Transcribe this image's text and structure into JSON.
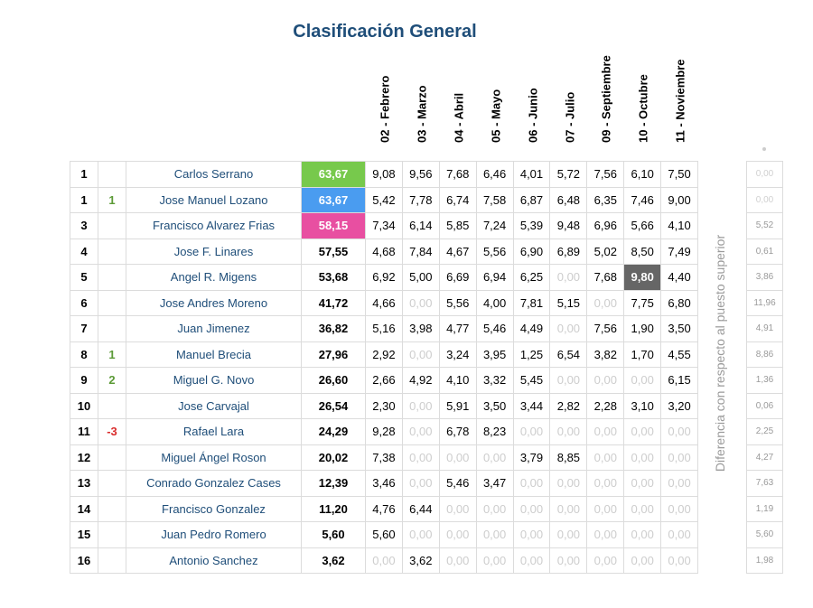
{
  "title": "Clasificación General",
  "columns": [
    "02 - Febrero",
    "03 - Marzo",
    "04 - Abril",
    "05 - Mayo",
    "06 - Junio",
    "07 - Julio",
    "09 - Septiembre",
    "10 - Octubre",
    "11 - Noviembre"
  ],
  "diff_label": "Diferencia con respecto al puesto superior",
  "diff_header_symbol": "•",
  "highlight_colors": {
    "first": "#77c94c",
    "second": "#4a9cf0",
    "third": "#e84fa1",
    "best_round": "#666666",
    "name": "#1f4e79"
  },
  "rows": [
    {
      "pos": "1",
      "change": "",
      "name": "Carlos Serrano",
      "total": "63,67",
      "scores": [
        "9,08",
        "9,56",
        "7,68",
        "6,46",
        "4,01",
        "5,72",
        "7,56",
        "6,10",
        "7,50"
      ],
      "diff": "0,00"
    },
    {
      "pos": "1",
      "change": "1",
      "name": "Jose Manuel Lozano",
      "total": "63,67",
      "scores": [
        "5,42",
        "7,78",
        "6,74",
        "7,58",
        "6,87",
        "6,48",
        "6,35",
        "7,46",
        "9,00"
      ],
      "diff": "0,00"
    },
    {
      "pos": "3",
      "change": "",
      "name": "Francisco Alvarez Frias",
      "total": "58,15",
      "scores": [
        "7,34",
        "6,14",
        "5,85",
        "7,24",
        "5,39",
        "9,48",
        "6,96",
        "5,66",
        "4,10"
      ],
      "diff": "5,52"
    },
    {
      "pos": "4",
      "change": "",
      "name": "Jose F. Linares",
      "total": "57,55",
      "scores": [
        "4,68",
        "7,84",
        "4,67",
        "5,56",
        "6,90",
        "6,89",
        "5,02",
        "8,50",
        "7,49"
      ],
      "diff": "0,61"
    },
    {
      "pos": "5",
      "change": "",
      "name": "Angel R. Migens",
      "total": "53,68",
      "scores": [
        "6,92",
        "5,00",
        "6,69",
        "6,94",
        "6,25",
        "0,00",
        "7,68",
        "9,80",
        "4,40"
      ],
      "diff": "3,86"
    },
    {
      "pos": "6",
      "change": "",
      "name": "Jose Andres Moreno",
      "total": "41,72",
      "scores": [
        "4,66",
        "0,00",
        "5,56",
        "4,00",
        "7,81",
        "5,15",
        "0,00",
        "7,75",
        "6,80"
      ],
      "diff": "11,96"
    },
    {
      "pos": "7",
      "change": "",
      "name": "Juan Jimenez",
      "total": "36,82",
      "scores": [
        "5,16",
        "3,98",
        "4,77",
        "5,46",
        "4,49",
        "0,00",
        "7,56",
        "1,90",
        "3,50"
      ],
      "diff": "4,91"
    },
    {
      "pos": "8",
      "change": "1",
      "name": "Manuel Brecia",
      "total": "27,96",
      "scores": [
        "2,92",
        "0,00",
        "3,24",
        "3,95",
        "1,25",
        "6,54",
        "3,82",
        "1,70",
        "4,55"
      ],
      "diff": "8,86"
    },
    {
      "pos": "9",
      "change": "2",
      "name": "Miguel G. Novo",
      "total": "26,60",
      "scores": [
        "2,66",
        "4,92",
        "4,10",
        "3,32",
        "5,45",
        "0,00",
        "0,00",
        "0,00",
        "6,15"
      ],
      "diff": "1,36"
    },
    {
      "pos": "10",
      "change": "",
      "name": "Jose Carvajal",
      "total": "26,54",
      "scores": [
        "2,30",
        "0,00",
        "5,91",
        "3,50",
        "3,44",
        "2,82",
        "2,28",
        "3,10",
        "3,20"
      ],
      "diff": "0,06"
    },
    {
      "pos": "11",
      "change": "-3",
      "name": "Rafael Lara",
      "total": "24,29",
      "scores": [
        "9,28",
        "0,00",
        "6,78",
        "8,23",
        "0,00",
        "0,00",
        "0,00",
        "0,00",
        "0,00"
      ],
      "diff": "2,25"
    },
    {
      "pos": "12",
      "change": "",
      "name": "Miguel Ángel Roson",
      "total": "20,02",
      "scores": [
        "7,38",
        "0,00",
        "0,00",
        "0,00",
        "3,79",
        "8,85",
        "0,00",
        "0,00",
        "0,00"
      ],
      "diff": "4,27"
    },
    {
      "pos": "13",
      "change": "",
      "name": "Conrado Gonzalez Cases",
      "total": "12,39",
      "scores": [
        "3,46",
        "0,00",
        "5,46",
        "3,47",
        "0,00",
        "0,00",
        "0,00",
        "0,00",
        "0,00"
      ],
      "diff": "7,63"
    },
    {
      "pos": "14",
      "change": "",
      "name": "Francisco Gonzalez",
      "total": "11,20",
      "scores": [
        "4,76",
        "6,44",
        "0,00",
        "0,00",
        "0,00",
        "0,00",
        "0,00",
        "0,00",
        "0,00"
      ],
      "diff": "1,19"
    },
    {
      "pos": "15",
      "change": "",
      "name": "Juan Pedro Romero",
      "total": "5,60",
      "scores": [
        "5,60",
        "0,00",
        "0,00",
        "0,00",
        "0,00",
        "0,00",
        "0,00",
        "0,00",
        "0,00"
      ],
      "diff": "5,60"
    },
    {
      "pos": "16",
      "change": "",
      "name": "Antonio Sanchez",
      "total": "3,62",
      "scores": [
        "0,00",
        "3,62",
        "0,00",
        "0,00",
        "0,00",
        "0,00",
        "0,00",
        "0,00",
        "0,00"
      ],
      "diff": "1,98"
    }
  ]
}
